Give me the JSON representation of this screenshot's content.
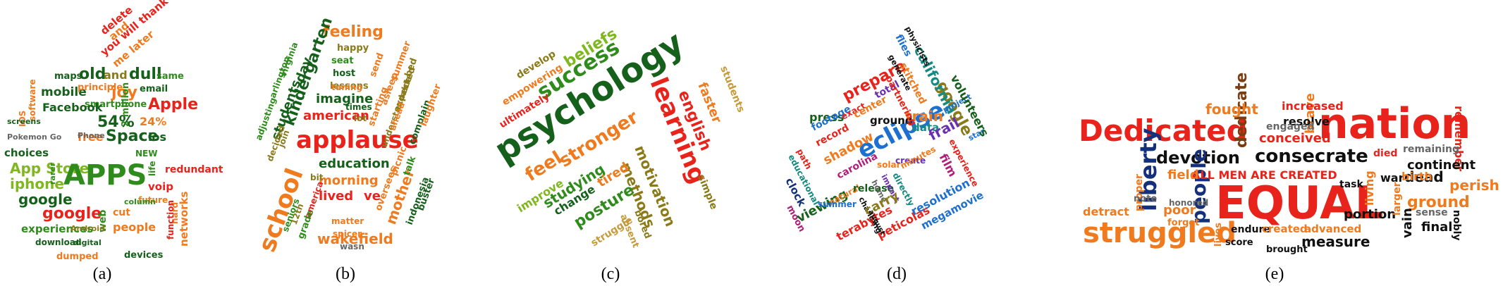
{
  "palette": {
    "red": "#e8231b",
    "orange": "#f07a1e",
    "green": "#2f8c1c",
    "dark_green": "#15601a",
    "lime": "#7fb81e",
    "olive": "#8a7a18",
    "tan": "#c79a3a",
    "brown": "#7a3d12",
    "navy": "#14307a",
    "blue": "#1d6fd0",
    "purple": "#6a2fb0",
    "magenta": "#b0207a",
    "teal": "#148a80",
    "dark": "#101010",
    "gray": "#666666",
    "pink": "#d84868"
  },
  "panels": [
    {
      "caption": "(a)",
      "shape": "apple",
      "words": [
        "APPS",
        "google",
        "App Store",
        "iphone",
        "choices",
        "free",
        "Space",
        "Apple",
        "54%",
        "24%",
        "2 million",
        "ios",
        "NEW",
        "life",
        "IOS",
        "software",
        "joy",
        "old",
        "and",
        "dull",
        "mobile",
        "Facebook",
        "email",
        "same",
        "principle",
        "smartphone",
        "Pokemon Go",
        "maps",
        "rarer",
        "column",
        "redundant",
        "voip",
        "future",
        "people",
        "cut",
        "hard",
        "experiences",
        "networks",
        "web",
        "Android",
        "digital",
        "download",
        "dumped",
        "devices",
        "function",
        "screens",
        "Phone",
        "vpn",
        "delete",
        "and",
        "you will thank",
        "me later"
      ]
    },
    {
      "caption": "(b)",
      "shape": "octagon",
      "words": [
        "applause",
        "school",
        "kindergarten",
        "students",
        "day",
        "feeling",
        "happy",
        "seat",
        "host",
        "lessons",
        "imagine",
        "american",
        "tuning",
        "times",
        "education",
        "morning",
        "lived",
        "ve",
        "bit",
        "join",
        "decided",
        "12th",
        "america",
        "seniors",
        "grade",
        "matter",
        "spicer",
        "wasn",
        "wakefield",
        "mother",
        "oversees",
        "picnic",
        "talk",
        "indonesia",
        "buster",
        "complain",
        "laughter",
        "expected",
        "bed",
        "summer",
        "asleep",
        "starting",
        "understandable",
        "send",
        "virginia",
        "arlington",
        "adjusting",
        "lot",
        "ahead"
      ]
    },
    {
      "caption": "(c)",
      "shape": "diamond",
      "words": [
        "psychology",
        "learning",
        "success",
        "beliefs",
        "english",
        "faster",
        "students",
        "develop",
        "empowering",
        "ultimately",
        "stronger",
        "feel",
        "motivation",
        "methods",
        "studying",
        "improve",
        "change",
        "posture",
        "tired",
        "struggle",
        "absent",
        "bored",
        "simple"
      ]
    },
    {
      "caption": "(d)",
      "shape": "square",
      "words": [
        "eclipse",
        "google",
        "california",
        "prepare",
        "train",
        "press",
        "footage",
        "exact",
        "record",
        "center",
        "total",
        "shadow",
        "carolina",
        "ground",
        "solar",
        "create",
        "data",
        "frail",
        "experience",
        "film",
        "project",
        "star",
        "volunteers",
        "flies",
        "generate",
        "partnering",
        "stitched",
        "physicists",
        "path",
        "educational",
        "clock",
        "moon",
        "viewing",
        "natural",
        "release",
        "changing",
        "home",
        "impact",
        "directly",
        "minutes",
        "terabytes",
        "summer",
        "carry",
        "peticolas",
        "resolution",
        "megamovie",
        "august"
      ]
    },
    {
      "caption": "(e)",
      "shape": "rectangle",
      "words": [
        "EQUAL",
        "nation",
        "Dedicated",
        "struggled",
        "consecrate",
        "devotion",
        "liberty",
        "people",
        "dedicate",
        "fought",
        "brave",
        "increased",
        "resolve",
        "remember",
        "engaged",
        "conceived",
        "ALL MEN ARE CREATED",
        "field",
        "proper",
        "note",
        "honored",
        "poor",
        "forget",
        "detract",
        "lives",
        "endure",
        "score",
        "created",
        "advanced",
        "measure",
        "brought",
        "living",
        "died",
        "remaining",
        "continent",
        "war",
        "dead",
        "birth",
        "task",
        "portion",
        "larger",
        "ground",
        "vain",
        "sense",
        "final",
        "nobly",
        "perish"
      ]
    }
  ]
}
